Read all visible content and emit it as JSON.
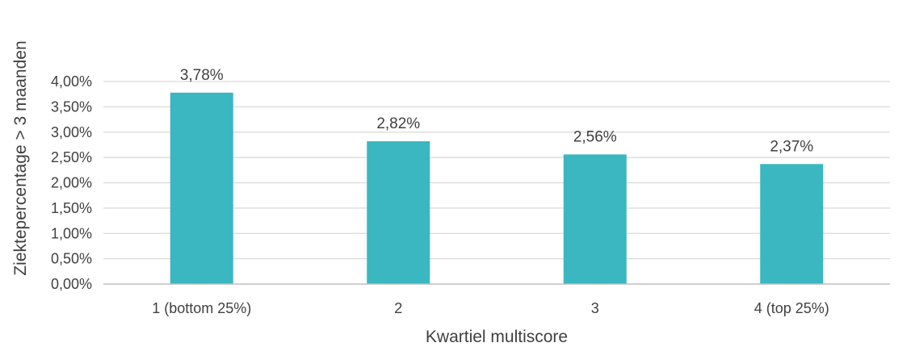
{
  "chart_data": {
    "type": "bar",
    "categories": [
      "1 (bottom 25%)",
      "2",
      "3",
      "4 (top 25%)"
    ],
    "values": [
      3.78,
      2.82,
      2.56,
      2.37
    ],
    "data_labels": [
      "3,78%",
      "2,82%",
      "2,56%",
      "2,37%"
    ],
    "xlabel": "Kwartiel multiscore",
    "ylabel": "Ziektepercentage > 3 maanden",
    "ylim": [
      0,
      4
    ],
    "y_ticks": [
      0,
      0.5,
      1,
      1.5,
      2,
      2.5,
      3,
      3.5,
      4
    ],
    "y_tick_labels": [
      "0,00%",
      "0,50%",
      "1,00%",
      "1,50%",
      "2,00%",
      "2,50%",
      "3,00%",
      "3,50%",
      "4,00%"
    ],
    "grid": true,
    "legend": "none",
    "colors": {
      "bar": "#3AB7C0",
      "grid": "#D9D9D9",
      "axis": "#BFBFBF",
      "text": "#404040"
    }
  }
}
